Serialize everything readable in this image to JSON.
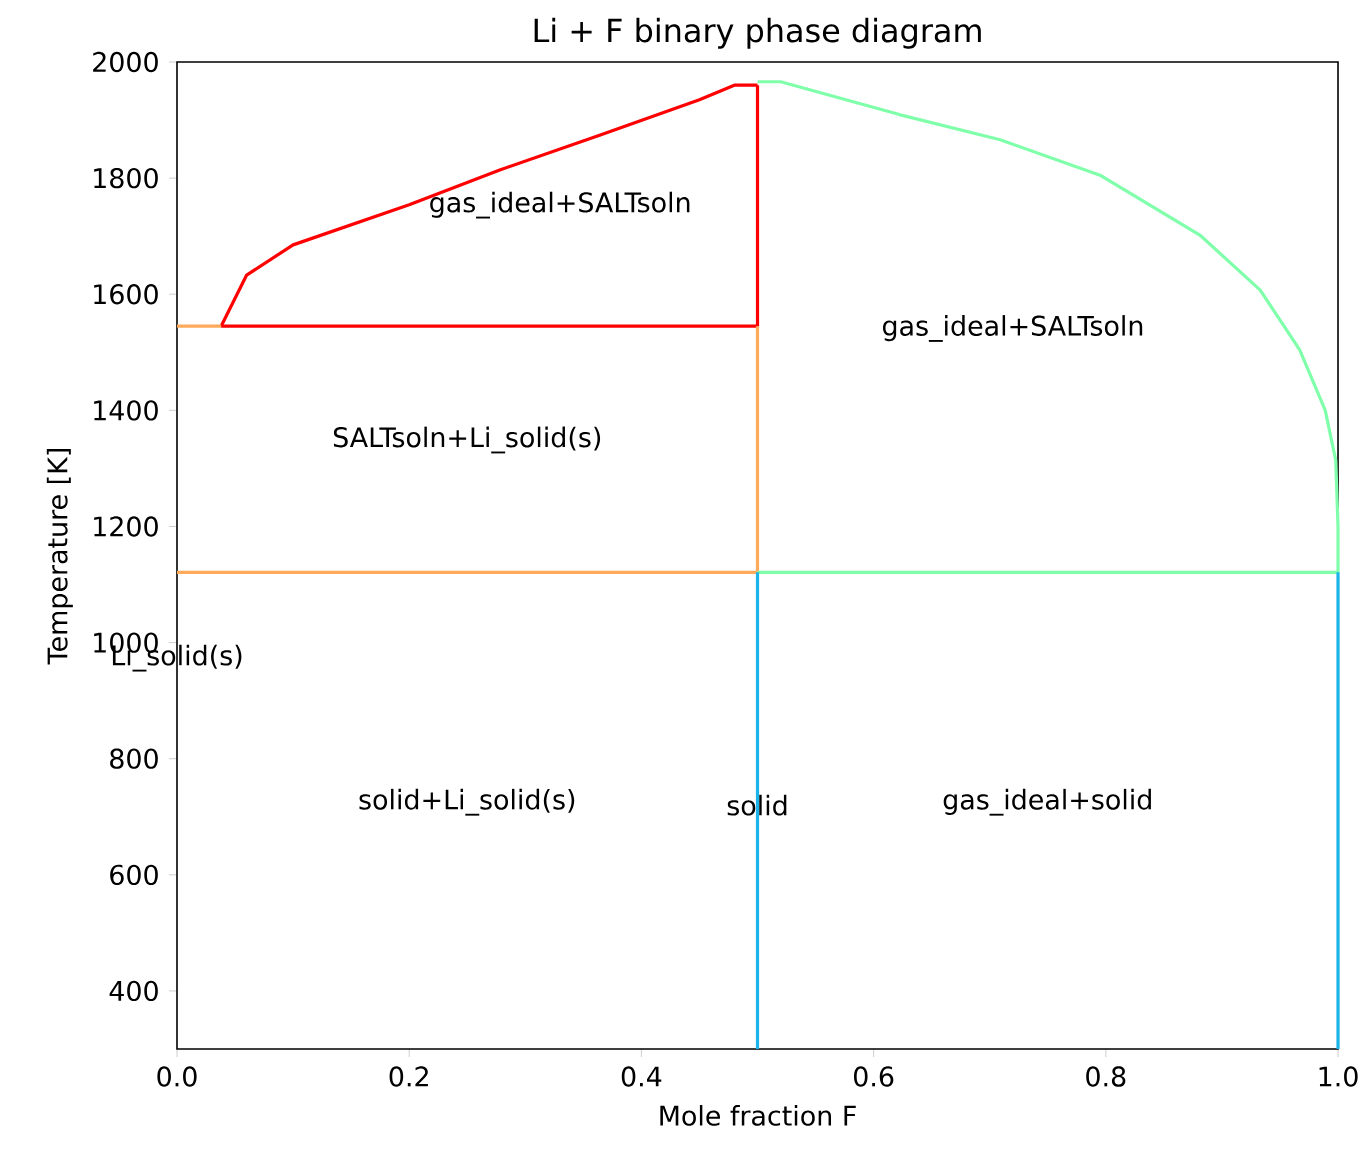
{
  "chart_data": {
    "type": "line",
    "title": "Li + F binary phase diagram",
    "xlabel": "Mole fraction F",
    "ylabel": "Temperature [K]",
    "xlim": [
      0,
      1
    ],
    "ylim": [
      300,
      2000
    ],
    "xticks": [
      {
        "value": 0,
        "label": "0.0"
      },
      {
        "value": 0.2,
        "label": "0.2"
      },
      {
        "value": 0.4,
        "label": "0.4"
      },
      {
        "value": 0.6,
        "label": "0.6"
      },
      {
        "value": 0.8,
        "label": "0.8"
      },
      {
        "value": 1,
        "label": "1.0"
      }
    ],
    "yticks": [
      400,
      600,
      800,
      1000,
      1200,
      1400,
      1600,
      1800,
      2000
    ],
    "grid": false,
    "legend": false,
    "marker": "none",
    "line_style": "solid",
    "series": [
      {
        "color": "#ff0000",
        "x": [
          0.038,
          0.06,
          0.1,
          0.2,
          0.278,
          0.364,
          0.45,
          0.48,
          0.5
        ],
        "values": [
          1545,
          1633,
          1685,
          1754,
          1814,
          1874,
          1935,
          1960,
          1960
        ]
      },
      {
        "color": "#ff0000",
        "x": [
          0.5,
          0.5
        ],
        "values": [
          1960,
          1545
        ]
      },
      {
        "color": "#ff0000",
        "x": [
          0.038,
          0.5
        ],
        "values": [
          1545,
          1545
        ]
      },
      {
        "color": "#ffaa5a",
        "x": [
          0,
          0.038
        ],
        "values": [
          1545,
          1545
        ]
      },
      {
        "color": "#ffaa5a",
        "x": [
          0.5,
          0.5
        ],
        "values": [
          1545,
          1121
        ]
      },
      {
        "color": "#ffaa5a",
        "x": [
          0,
          0.5
        ],
        "values": [
          1121,
          1121
        ]
      },
      {
        "color": "#80ffaa",
        "x": [
          0.5,
          1.0,
          1.0,
          0.998,
          0.989,
          0.967,
          0.933,
          0.881,
          0.795,
          0.709,
          0.623,
          0.52,
          0.5
        ],
        "values": [
          1121,
          1121,
          1200,
          1314,
          1400,
          1504,
          1607,
          1702,
          1805,
          1866,
          1909,
          1966,
          1966
        ]
      },
      {
        "color": "#1ab4eb",
        "x": [
          0.5,
          0.5
        ],
        "values": [
          300,
          1121
        ]
      },
      {
        "color": "#1ab4eb",
        "x": [
          1.0,
          1.0
        ],
        "values": [
          300,
          1121
        ]
      }
    ],
    "annotations": [
      "gas_ideal+SALTsoln",
      "gas_ideal+SALTsoln",
      "SALTsoln+Li_solid(s)",
      "Li_solid(s)",
      "solid+Li_solid(s)",
      "solid",
      "gas_ideal+solid"
    ]
  }
}
